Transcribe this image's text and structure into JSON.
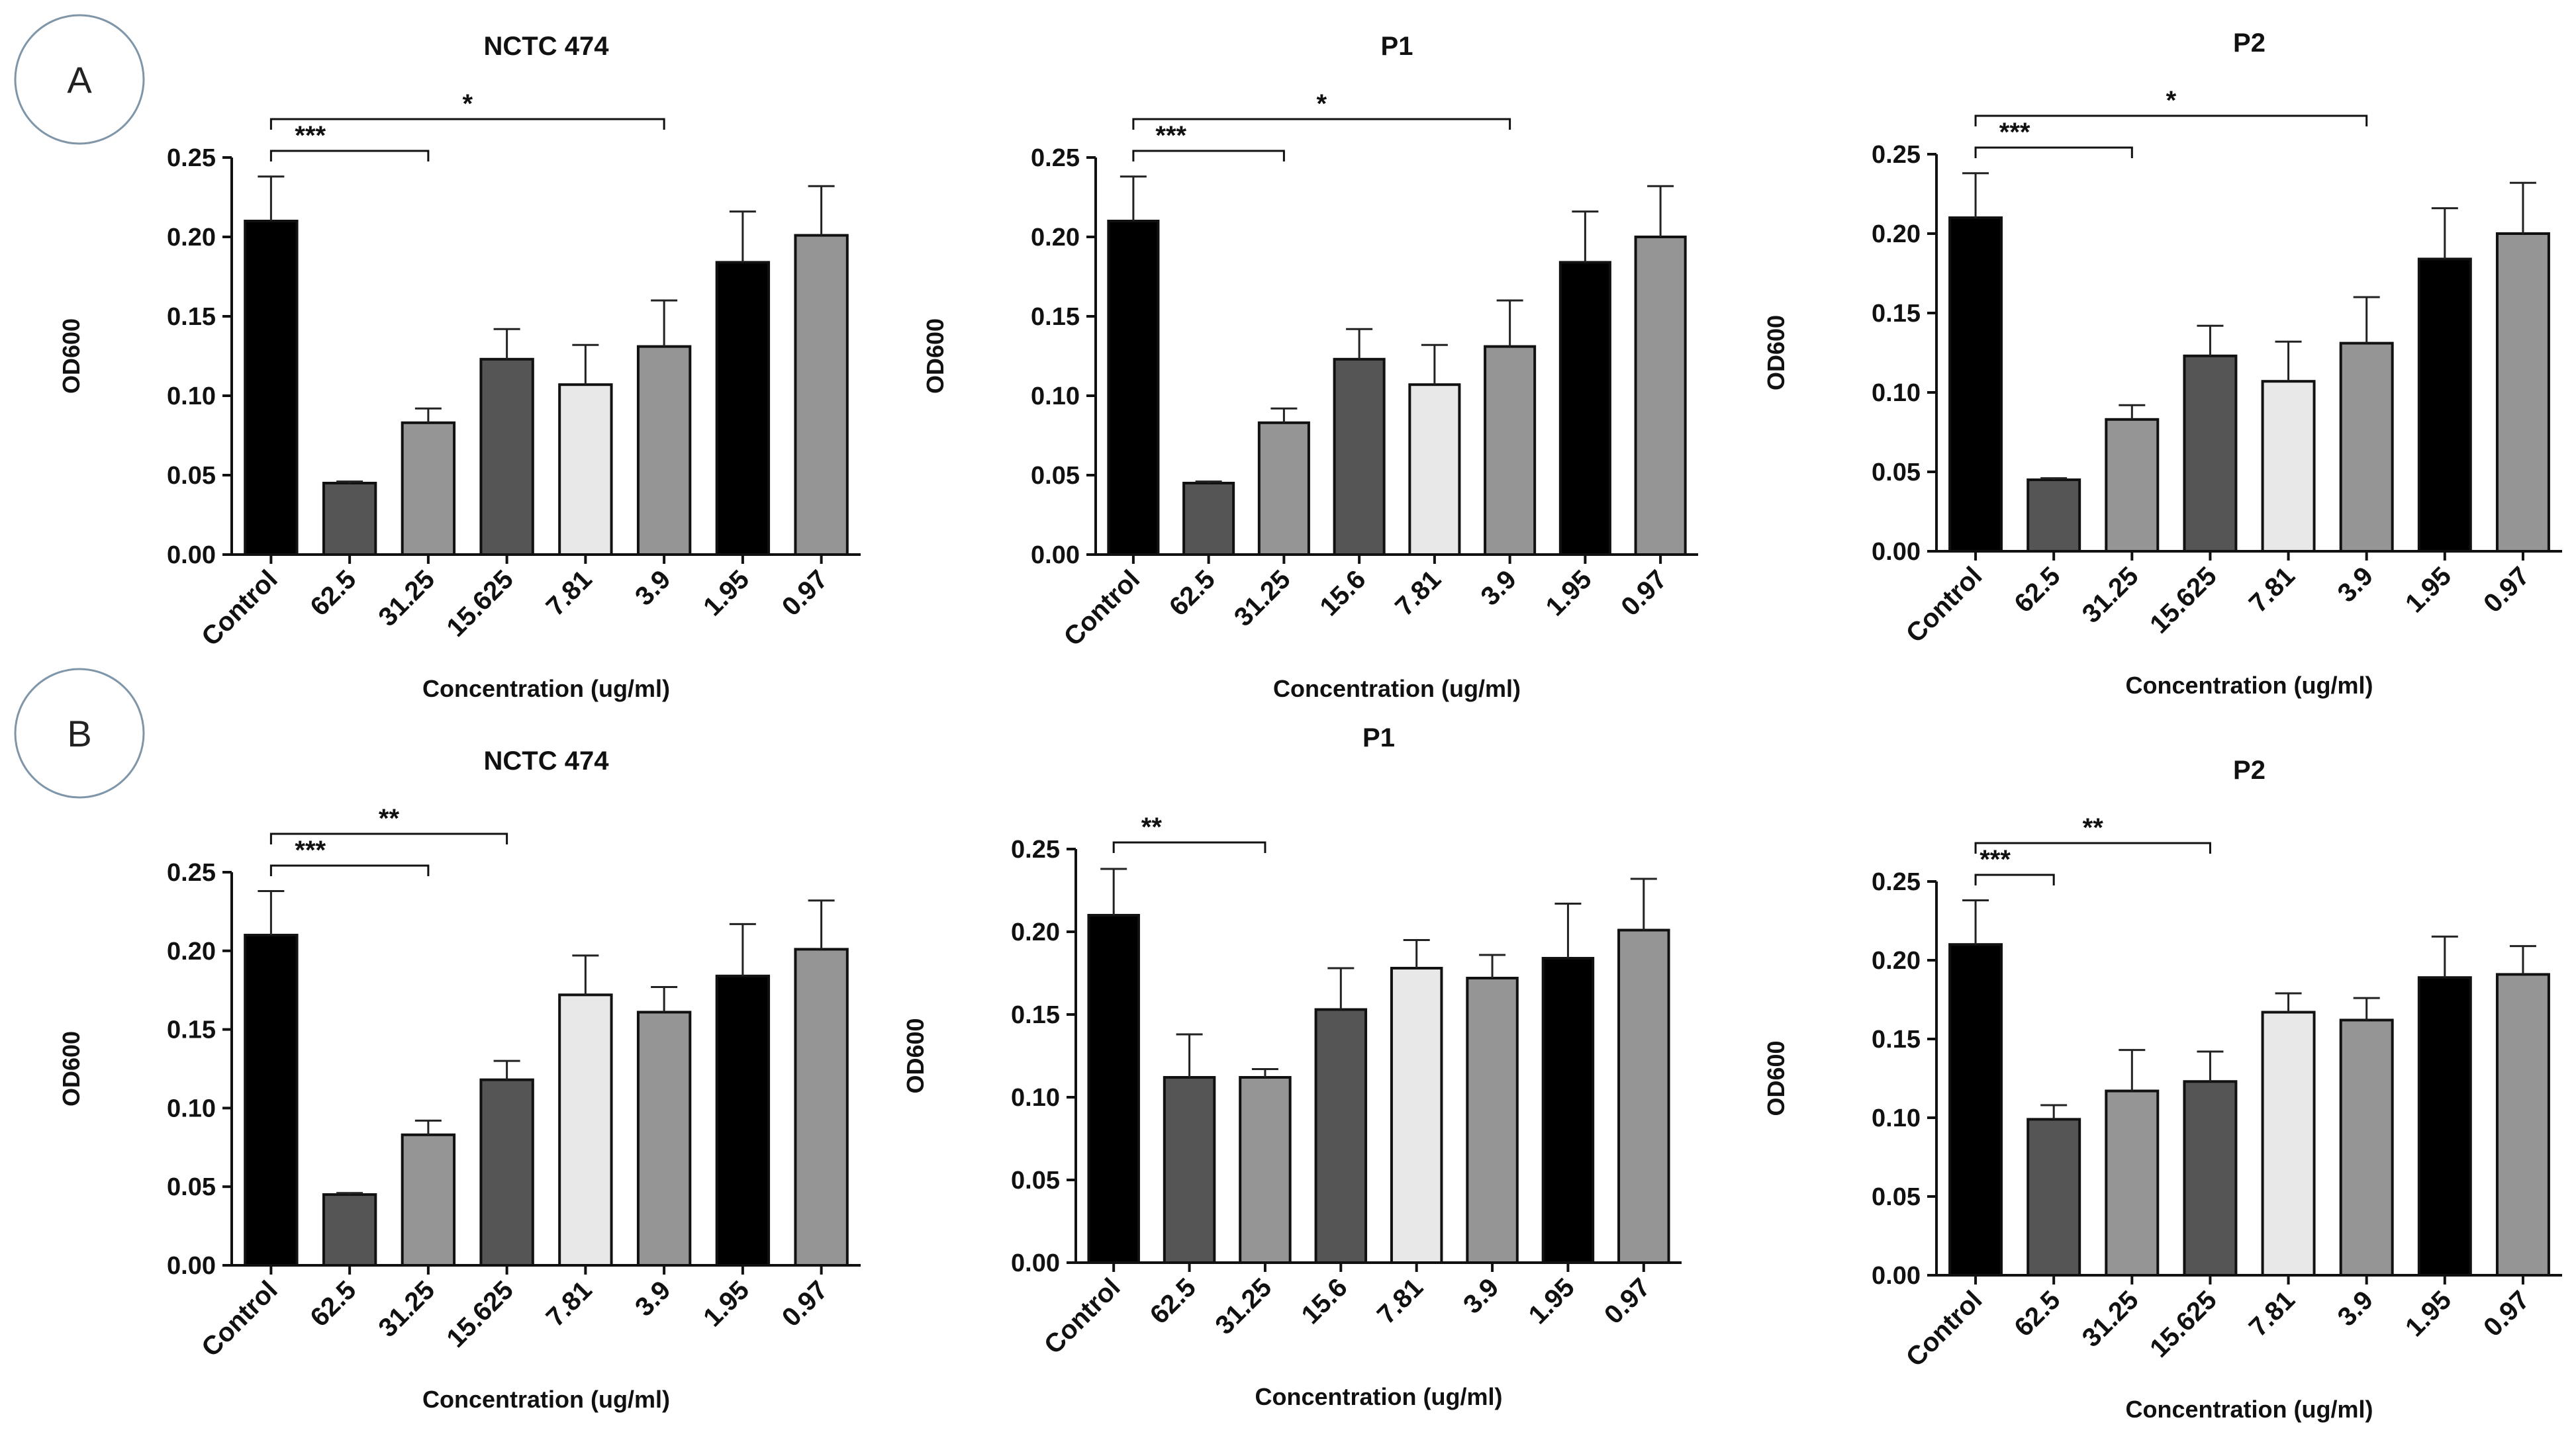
{
  "panels": [
    {
      "letter": "A"
    },
    {
      "letter": "B"
    }
  ],
  "chart_data": [
    {
      "type": "bar",
      "panel": "A",
      "title": "NCTC 474",
      "xlabel": "Concentration (ug/ml)",
      "ylabel": "OD600",
      "ylim": [
        0,
        0.25
      ],
      "yticks": [
        "0.00",
        "0.05",
        "0.10",
        "0.15",
        "0.20",
        "0.25"
      ],
      "categories": [
        "Control",
        "62.5",
        "31.25",
        "15.625",
        "7.81",
        "3.9",
        "1.95",
        "0.97"
      ],
      "values": [
        0.21,
        0.045,
        0.083,
        0.123,
        0.107,
        0.131,
        0.184,
        0.201
      ],
      "errors": [
        0.028,
        0.001,
        0.009,
        0.019,
        0.025,
        0.029,
        0.032,
        0.031
      ],
      "colors": [
        "#000000",
        "#555555",
        "#959595",
        "#555555",
        "#e8e8e8",
        "#959595",
        "#000000",
        "#959595"
      ],
      "significance": [
        {
          "from": 0,
          "to": 2,
          "label": "***"
        },
        {
          "from": 0,
          "to": 5,
          "label": "*"
        }
      ]
    },
    {
      "type": "bar",
      "panel": "A",
      "title": "P1",
      "xlabel": "Concentration (ug/ml)",
      "ylabel": "OD600",
      "ylim": [
        0,
        0.25
      ],
      "yticks": [
        "0.00",
        "0.05",
        "0.10",
        "0.15",
        "0.20",
        "0.25"
      ],
      "categories": [
        "Control",
        "62.5",
        "31.25",
        "15.6",
        "7.81",
        "3.9",
        "1.95",
        "0.97"
      ],
      "values": [
        0.21,
        0.045,
        0.083,
        0.123,
        0.107,
        0.131,
        0.184,
        0.2
      ],
      "errors": [
        0.028,
        0.001,
        0.009,
        0.019,
        0.025,
        0.029,
        0.032,
        0.032
      ],
      "colors": [
        "#000000",
        "#555555",
        "#959595",
        "#555555",
        "#e8e8e8",
        "#959595",
        "#000000",
        "#959595"
      ],
      "significance": [
        {
          "from": 0,
          "to": 2,
          "label": "***"
        },
        {
          "from": 0,
          "to": 5,
          "label": "*"
        }
      ]
    },
    {
      "type": "bar",
      "panel": "A",
      "title": "P2",
      "xlabel": "Concentration (ug/ml)",
      "ylabel": "OD600",
      "ylim": [
        0,
        0.25
      ],
      "yticks": [
        "0.00",
        "0.05",
        "0.10",
        "0.15",
        "0.20",
        "0.25"
      ],
      "categories": [
        "Control",
        "62.5",
        "31.25",
        "15.625",
        "7.81",
        "3.9",
        "1.95",
        "0.97"
      ],
      "values": [
        0.21,
        0.045,
        0.083,
        0.123,
        0.107,
        0.131,
        0.184,
        0.2
      ],
      "errors": [
        0.028,
        0.001,
        0.009,
        0.019,
        0.025,
        0.029,
        0.032,
        0.032
      ],
      "colors": [
        "#000000",
        "#555555",
        "#959595",
        "#555555",
        "#e8e8e8",
        "#959595",
        "#000000",
        "#959595"
      ],
      "significance": [
        {
          "from": 0,
          "to": 2,
          "label": "***"
        },
        {
          "from": 0,
          "to": 5,
          "label": "*"
        }
      ]
    },
    {
      "type": "bar",
      "panel": "B",
      "title": "NCTC 474",
      "xlabel": "Concentration (ug/ml)",
      "ylabel": "OD600",
      "ylim": [
        0,
        0.25
      ],
      "yticks": [
        "0.00",
        "0.05",
        "0.10",
        "0.15",
        "0.20",
        "0.25"
      ],
      "categories": [
        "Control",
        "62.5",
        "31.25",
        "15.625",
        "7.81",
        "3.9",
        "1.95",
        "0.97"
      ],
      "values": [
        0.21,
        0.045,
        0.083,
        0.118,
        0.172,
        0.161,
        0.184,
        0.201
      ],
      "errors": [
        0.028,
        0.001,
        0.009,
        0.012,
        0.025,
        0.016,
        0.033,
        0.031
      ],
      "colors": [
        "#000000",
        "#555555",
        "#959595",
        "#555555",
        "#e8e8e8",
        "#959595",
        "#000000",
        "#959595"
      ],
      "significance": [
        {
          "from": 0,
          "to": 2,
          "label": "***"
        },
        {
          "from": 0,
          "to": 3,
          "label": "**"
        }
      ]
    },
    {
      "type": "bar",
      "panel": "B",
      "title": "P1",
      "xlabel": "Concentration (ug/ml)",
      "ylabel": "OD600",
      "ylim": [
        0,
        0.25
      ],
      "yticks": [
        "0.00",
        "0.05",
        "0.10",
        "0.15",
        "0.20",
        "0.25"
      ],
      "categories": [
        "Control",
        "62.5",
        "31.25",
        "15.6",
        "7.81",
        "3.9",
        "1.95",
        "0.97"
      ],
      "values": [
        0.21,
        0.112,
        0.112,
        0.153,
        0.178,
        0.172,
        0.184,
        0.201
      ],
      "errors": [
        0.028,
        0.026,
        0.005,
        0.025,
        0.017,
        0.014,
        0.033,
        0.031
      ],
      "colors": [
        "#000000",
        "#555555",
        "#959595",
        "#555555",
        "#e8e8e8",
        "#959595",
        "#000000",
        "#959595"
      ],
      "significance": [
        {
          "from": 0,
          "to": 2,
          "label": "**"
        }
      ]
    },
    {
      "type": "bar",
      "panel": "B",
      "title": "P2",
      "xlabel": "Concentration (ug/ml)",
      "ylabel": "OD600",
      "ylim": [
        0,
        0.25
      ],
      "yticks": [
        "0.00",
        "0.05",
        "0.10",
        "0.15",
        "0.20",
        "0.25"
      ],
      "categories": [
        "Control",
        "62.5",
        "31.25",
        "15.625",
        "7.81",
        "3.9",
        "1.95",
        "0.97"
      ],
      "values": [
        0.21,
        0.099,
        0.117,
        0.123,
        0.167,
        0.162,
        0.189,
        0.191
      ],
      "errors": [
        0.028,
        0.009,
        0.026,
        0.019,
        0.012,
        0.014,
        0.026,
        0.018
      ],
      "colors": [
        "#000000",
        "#555555",
        "#959595",
        "#555555",
        "#e8e8e8",
        "#959595",
        "#000000",
        "#959595"
      ],
      "significance": [
        {
          "from": 0,
          "to": 1,
          "label": "***"
        },
        {
          "from": 0,
          "to": 3,
          "label": "**"
        }
      ]
    }
  ]
}
